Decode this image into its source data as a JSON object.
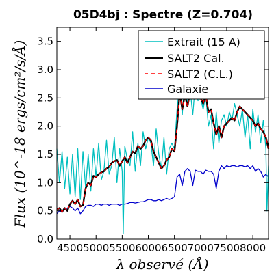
{
  "chart_data": {
    "type": "line",
    "title": "05D4bj : Spectre (Z=0.704)",
    "xlabel": "λ observé (Å)",
    "ylabel": "Flux (10^-18 ergs/cm²/s/Å)",
    "xlim": [
      4250,
      8300
    ],
    "ylim": [
      0.0,
      3.75
    ],
    "x_ticks": [
      4500,
      5000,
      5500,
      6000,
      6500,
      7000,
      7500,
      8000
    ],
    "y_ticks": [
      0.0,
      0.5,
      1.0,
      1.5,
      2.0,
      2.5,
      3.0,
      3.5
    ],
    "legend_position": "top-right",
    "grid": false,
    "series": [
      {
        "name": "Extrait (15 A)",
        "color": "#00bfbf",
        "style": "solid",
        "x": [
          4250,
          4300,
          4350,
          4400,
          4450,
          4500,
          4550,
          4600,
          4650,
          4700,
          4750,
          4800,
          4850,
          4900,
          4950,
          5000,
          5050,
          5100,
          5150,
          5200,
          5250,
          5300,
          5350,
          5400,
          5450,
          5500,
          5520,
          5550,
          5600,
          5650,
          5700,
          5750,
          5800,
          5850,
          5900,
          5950,
          6000,
          6050,
          6100,
          6150,
          6200,
          6250,
          6300,
          6350,
          6400,
          6450,
          6500,
          6550,
          6600,
          6650,
          6700,
          6750,
          6800,
          6850,
          6900,
          6950,
          7000,
          7050,
          7100,
          7150,
          7200,
          7250,
          7300,
          7350,
          7400,
          7450,
          7500,
          7550,
          7600,
          7650,
          7700,
          7750,
          7800,
          7850,
          7900,
          7950,
          8000,
          8050,
          8100,
          8150,
          8200,
          8250,
          8270,
          8300
        ],
        "y": [
          1.6,
          1.0,
          1.55,
          0.9,
          1.45,
          0.8,
          1.5,
          0.75,
          1.6,
          0.7,
          1.55,
          0.9,
          1.5,
          0.85,
          1.6,
          1.1,
          1.7,
          1.05,
          1.2,
          1.75,
          1.15,
          1.3,
          1.8,
          1.0,
          1.6,
          1.2,
          0.1,
          1.65,
          1.4,
          1.3,
          1.9,
          1.2,
          1.7,
          1.3,
          1.9,
          1.6,
          1.8,
          1.7,
          1.3,
          1.95,
          1.5,
          1.25,
          1.8,
          1.15,
          1.6,
          1.7,
          1.6,
          2.3,
          2.75,
          2.2,
          2.9,
          2.4,
          2.65,
          2.2,
          2.75,
          2.45,
          2.5,
          2.3,
          2.55,
          2.0,
          2.2,
          1.6,
          2.25,
          1.7,
          2.1,
          2.2,
          2.0,
          2.25,
          2.1,
          2.4,
          2.2,
          2.0,
          2.3,
          1.8,
          2.2,
          1.6,
          2.3,
          1.9,
          2.2,
          1.7,
          2.1,
          1.6,
          0.5,
          1.3
        ]
      },
      {
        "name": "SALT2 Cal.",
        "color": "#000000",
        "style": "solid",
        "x": [
          4250,
          4300,
          4350,
          4400,
          4450,
          4500,
          4550,
          4600,
          4650,
          4700,
          4750,
          4800,
          4850,
          4900,
          4950,
          5000,
          5050,
          5100,
          5150,
          5200,
          5250,
          5300,
          5350,
          5400,
          5450,
          5500,
          5550,
          5600,
          5650,
          5700,
          5750,
          5800,
          5850,
          5900,
          5950,
          6000,
          6050,
          6100,
          6150,
          6200,
          6250,
          6300,
          6350,
          6400,
          6450,
          6500,
          6550,
          6600,
          6650,
          6700,
          6750,
          6800,
          6850,
          6900,
          6950,
          7000,
          7050,
          7100,
          7150,
          7200,
          7250,
          7300,
          7350,
          7400,
          7450,
          7500,
          7550,
          7600,
          7650,
          7700,
          7750,
          7800,
          7850,
          7900,
          7950,
          8000,
          8050,
          8100,
          8150,
          8200,
          8250,
          8300
        ],
        "y": [
          0.52,
          0.55,
          0.48,
          0.55,
          0.5,
          0.62,
          0.68,
          0.62,
          0.7,
          0.58,
          0.6,
          0.9,
          1.0,
          0.95,
          1.12,
          1.1,
          1.15,
          1.18,
          1.2,
          1.25,
          1.28,
          1.35,
          1.38,
          1.4,
          1.3,
          1.38,
          1.45,
          1.35,
          1.45,
          1.55,
          1.52,
          1.65,
          1.6,
          1.65,
          1.75,
          1.8,
          1.75,
          1.55,
          1.45,
          1.35,
          1.25,
          1.3,
          1.4,
          1.45,
          1.6,
          1.55,
          2.0,
          2.6,
          2.3,
          2.55,
          2.35,
          2.6,
          2.5,
          2.65,
          2.6,
          2.5,
          2.4,
          2.55,
          2.25,
          2.3,
          2.05,
          1.85,
          2.0,
          1.8,
          2.0,
          2.05,
          2.1,
          2.15,
          2.1,
          2.25,
          2.35,
          2.3,
          2.25,
          2.2,
          2.15,
          2.1,
          2.0,
          2.05,
          1.95,
          1.9,
          1.8,
          1.6
        ]
      },
      {
        "name": "SALT2 (C.L.)",
        "color": "#ff0000",
        "style": "dashed",
        "x": [
          4250,
          4300,
          4350,
          4400,
          4450,
          4500,
          4550,
          4600,
          4650,
          4700,
          4750,
          4800,
          4850,
          4900,
          4950,
          5000,
          5050,
          5100,
          5150,
          5200,
          5250,
          5300,
          5350,
          5400,
          5450,
          5500,
          5550,
          5600,
          5650,
          5700,
          5750,
          5800,
          5850,
          5900,
          5950,
          6000,
          6050,
          6100,
          6150,
          6200,
          6250,
          6300,
          6350,
          6400,
          6450,
          6500,
          6550,
          6600,
          6650,
          6700,
          6750,
          6800,
          6850,
          6900,
          6950,
          7000,
          7050,
          7100,
          7150,
          7200,
          7250,
          7300,
          7350,
          7400,
          7450,
          7500,
          7550,
          7600,
          7650,
          7700,
          7750,
          7800,
          7850,
          7900,
          7950,
          8000,
          8050,
          8100,
          8150,
          8200,
          8250,
          8300
        ],
        "y": [
          0.52,
          0.55,
          0.48,
          0.55,
          0.5,
          0.62,
          0.68,
          0.62,
          0.7,
          0.58,
          0.6,
          0.9,
          1.0,
          0.95,
          1.12,
          1.1,
          1.15,
          1.18,
          1.2,
          1.25,
          1.28,
          1.35,
          1.38,
          1.4,
          1.3,
          1.38,
          1.45,
          1.35,
          1.45,
          1.55,
          1.52,
          1.65,
          1.6,
          1.65,
          1.75,
          1.8,
          1.75,
          1.55,
          1.45,
          1.35,
          1.25,
          1.3,
          1.4,
          1.45,
          1.6,
          1.55,
          2.0,
          2.6,
          2.3,
          2.55,
          2.35,
          2.6,
          2.5,
          2.65,
          2.6,
          2.5,
          2.4,
          2.55,
          2.25,
          2.3,
          2.05,
          1.85,
          2.0,
          1.8,
          2.0,
          2.05,
          2.1,
          2.15,
          2.1,
          2.25,
          2.35,
          2.3,
          2.25,
          2.2,
          2.15,
          2.1,
          2.0,
          2.05,
          1.95,
          1.9,
          1.8,
          1.6
        ]
      },
      {
        "name": "Galaxie",
        "color": "#0000cc",
        "style": "solid",
        "x": [
          4250,
          4300,
          4350,
          4400,
          4450,
          4500,
          4550,
          4600,
          4650,
          4700,
          4750,
          4800,
          4850,
          4900,
          4950,
          5000,
          5050,
          5100,
          5150,
          5200,
          5250,
          5300,
          5350,
          5400,
          5450,
          5500,
          5550,
          5600,
          5650,
          5700,
          5750,
          5800,
          5850,
          5900,
          5950,
          6000,
          6050,
          6100,
          6150,
          6200,
          6250,
          6300,
          6350,
          6400,
          6450,
          6500,
          6550,
          6600,
          6650,
          6700,
          6750,
          6800,
          6850,
          6900,
          6950,
          7000,
          7050,
          7100,
          7150,
          7200,
          7250,
          7300,
          7350,
          7400,
          7450,
          7500,
          7550,
          7600,
          7650,
          7700,
          7750,
          7800,
          7850,
          7900,
          7950,
          8000,
          8050,
          8100,
          8150,
          8200,
          8250,
          8300
        ],
        "y": [
          0.45,
          0.5,
          0.48,
          0.52,
          0.55,
          0.58,
          0.55,
          0.5,
          0.55,
          0.45,
          0.5,
          0.58,
          0.6,
          0.6,
          0.58,
          0.62,
          0.62,
          0.6,
          0.62,
          0.62,
          0.6,
          0.62,
          0.62,
          0.62,
          0.6,
          0.62,
          0.62,
          0.63,
          0.65,
          0.65,
          0.64,
          0.65,
          0.66,
          0.66,
          0.68,
          0.7,
          0.7,
          0.68,
          0.68,
          0.7,
          0.68,
          0.7,
          0.72,
          0.7,
          0.72,
          0.75,
          1.1,
          1.15,
          0.95,
          1.2,
          1.25,
          1.2,
          0.95,
          1.22,
          1.2,
          1.2,
          1.15,
          1.22,
          1.2,
          1.2,
          1.15,
          0.9,
          1.2,
          1.3,
          1.25,
          1.3,
          1.28,
          1.3,
          1.3,
          1.28,
          1.3,
          1.3,
          1.28,
          1.3,
          1.25,
          1.3,
          1.2,
          1.25,
          1.2,
          1.1,
          1.15,
          1.1
        ]
      }
    ]
  }
}
